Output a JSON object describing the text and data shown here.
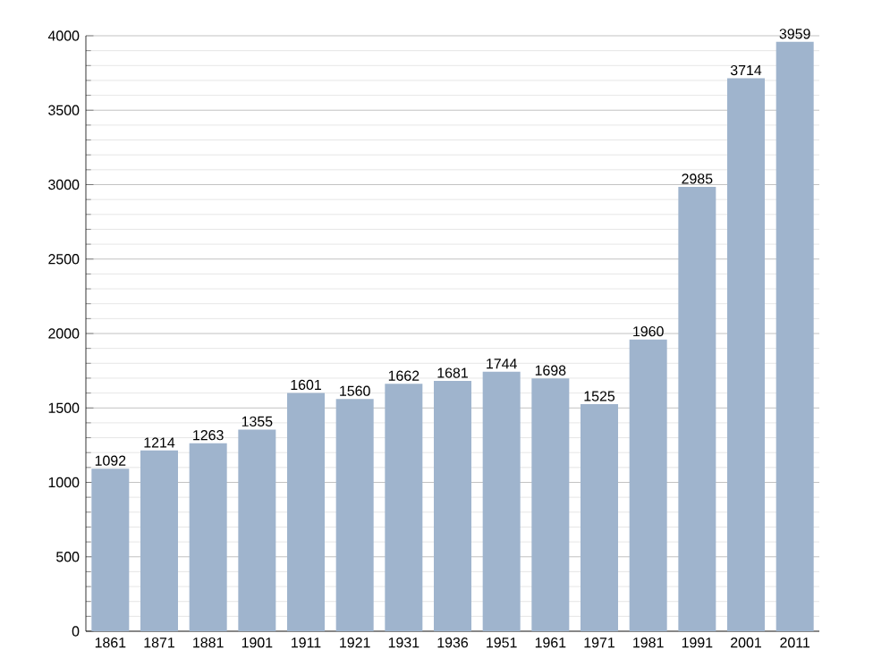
{
  "chart_data": {
    "type": "bar",
    "categories": [
      "1861",
      "1871",
      "1881",
      "1901",
      "1911",
      "1921",
      "1931",
      "1936",
      "1951",
      "1961",
      "1971",
      "1981",
      "1991",
      "2001",
      "2011"
    ],
    "values": [
      1092,
      1214,
      1263,
      1355,
      1601,
      1560,
      1662,
      1681,
      1744,
      1698,
      1525,
      1960,
      2985,
      3714,
      3959
    ],
    "color": "#9fb4cd",
    "ylim": [
      0,
      4000
    ],
    "yticks": [
      0,
      500,
      1000,
      1500,
      2000,
      2500,
      3000,
      3500,
      4000
    ],
    "grid": "y",
    "data_labels": true
  }
}
